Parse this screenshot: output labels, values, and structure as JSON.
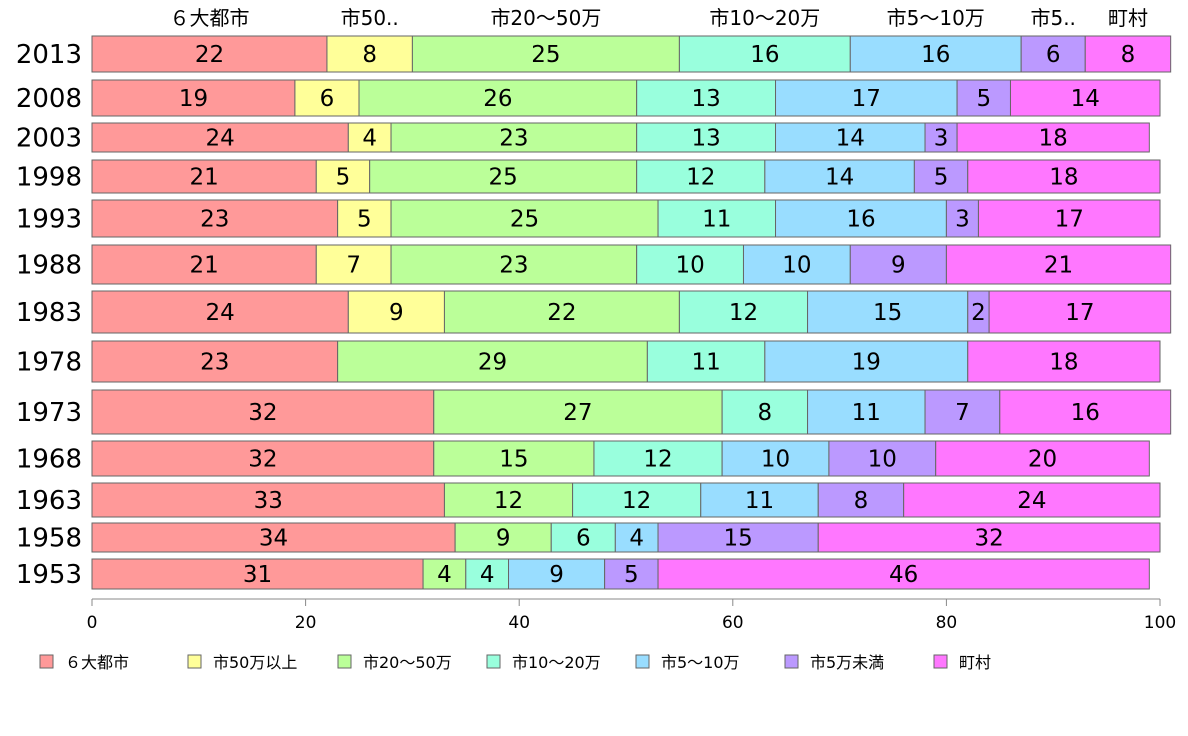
{
  "chart_data": {
    "type": "bar",
    "orientation": "horizontal",
    "stacked": true,
    "categories": [
      "2013",
      "2008",
      "2003",
      "1998",
      "1993",
      "1988",
      "1983",
      "1978",
      "1973",
      "1968",
      "1963",
      "1958",
      "1953"
    ],
    "series": [
      {
        "name": "６大都市",
        "color": "#ff9999",
        "values": [
          22,
          19,
          24,
          21,
          23,
          21,
          24,
          23,
          32,
          32,
          33,
          34,
          31
        ]
      },
      {
        "name": "市50万以上",
        "color": "#ffff99",
        "values": [
          8,
          6,
          4,
          5,
          5,
          7,
          9,
          0,
          0,
          0,
          0,
          0,
          0
        ]
      },
      {
        "name": "市20～50万",
        "color": "#bbff99",
        "values": [
          25,
          26,
          23,
          25,
          25,
          23,
          22,
          29,
          27,
          15,
          12,
          9,
          4
        ]
      },
      {
        "name": "市10～20万",
        "color": "#99ffdd",
        "values": [
          16,
          13,
          13,
          12,
          11,
          10,
          12,
          11,
          8,
          12,
          12,
          6,
          4
        ]
      },
      {
        "name": "市5～10万",
        "color": "#99ddff",
        "values": [
          16,
          17,
          14,
          14,
          16,
          10,
          15,
          19,
          11,
          10,
          11,
          4,
          9
        ]
      },
      {
        "name": "市5万未満",
        "color": "#bb99ff",
        "values": [
          6,
          5,
          3,
          5,
          3,
          9,
          2,
          0,
          7,
          10,
          8,
          15,
          5
        ]
      },
      {
        "name": "町村",
        "color": "#ff77ff",
        "values": [
          8,
          14,
          18,
          18,
          17,
          21,
          17,
          18,
          16,
          20,
          24,
          32,
          46
        ]
      }
    ],
    "top_labels": [
      "６大都市",
      "市50..",
      "市20～50万",
      "市10～20万",
      "市5～10万",
      "市5..",
      "町村"
    ],
    "xlim": [
      0,
      100
    ],
    "xticks": [
      "0",
      "20",
      "40",
      "60",
      "80",
      "100"
    ],
    "legend_position": "bottom"
  }
}
